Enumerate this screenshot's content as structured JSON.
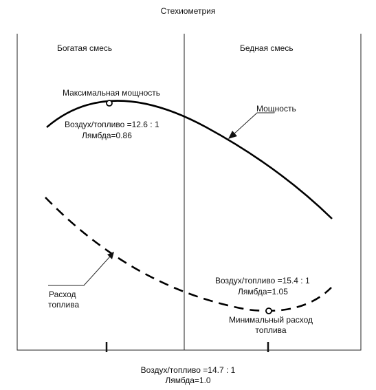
{
  "title": "Стехиометрия",
  "regions": {
    "rich": "Богатая смесь",
    "lean": "Бедная смесь"
  },
  "power": {
    "max_label": "Максимальная мощность",
    "ratio": "Воздух/топливо =12.6 : 1",
    "lambda": "Лямбда=0.86",
    "curve_label": "Мощность"
  },
  "fuel": {
    "curve_label_line1": "Расход",
    "curve_label_line2": "топлива",
    "min_ratio": "Воздух/топливо =15.4 : 1",
    "min_lambda": "Лямбда=1.05",
    "min_label_line1": "Минимальный расход",
    "min_label_line2": "топлива"
  },
  "stoichiometric": {
    "ratio": "Воздух/топливо =14.7 : 1",
    "lambda": "Лямбда=1.0"
  }
}
